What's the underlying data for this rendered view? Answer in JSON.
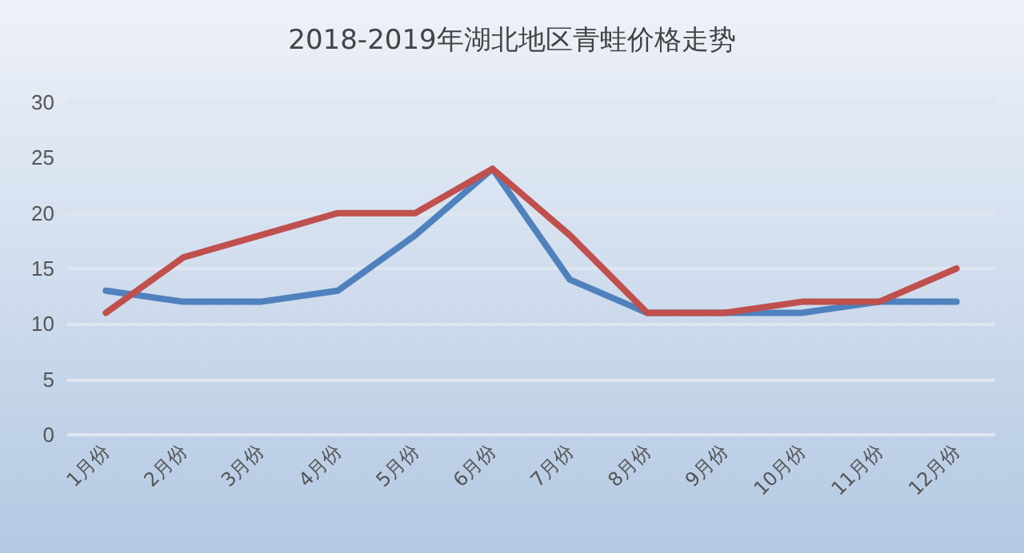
{
  "chart_data": {
    "type": "line",
    "title": "2018-2019年湖北地区青蛙价格走势",
    "categories": [
      "1月份",
      "2月份",
      "3月份",
      "4月份",
      "5月份",
      "6月份",
      "7月份",
      "8月份",
      "9月份",
      "10月份",
      "11月份",
      "12月份"
    ],
    "series": [
      {
        "color": "#4f81bd",
        "values": [
          13,
          12,
          12,
          13,
          18,
          24,
          14,
          11,
          11,
          11,
          12,
          12
        ]
      },
      {
        "color": "#c0504d",
        "values": [
          11,
          16,
          18,
          20,
          20,
          24,
          18,
          11,
          11,
          12,
          12,
          15
        ]
      }
    ],
    "ylim": [
      0,
      30
    ],
    "yticks": [
      0,
      5,
      10,
      15,
      20,
      25,
      30
    ],
    "grid": "y",
    "marker": "none",
    "line_style": "solid"
  }
}
